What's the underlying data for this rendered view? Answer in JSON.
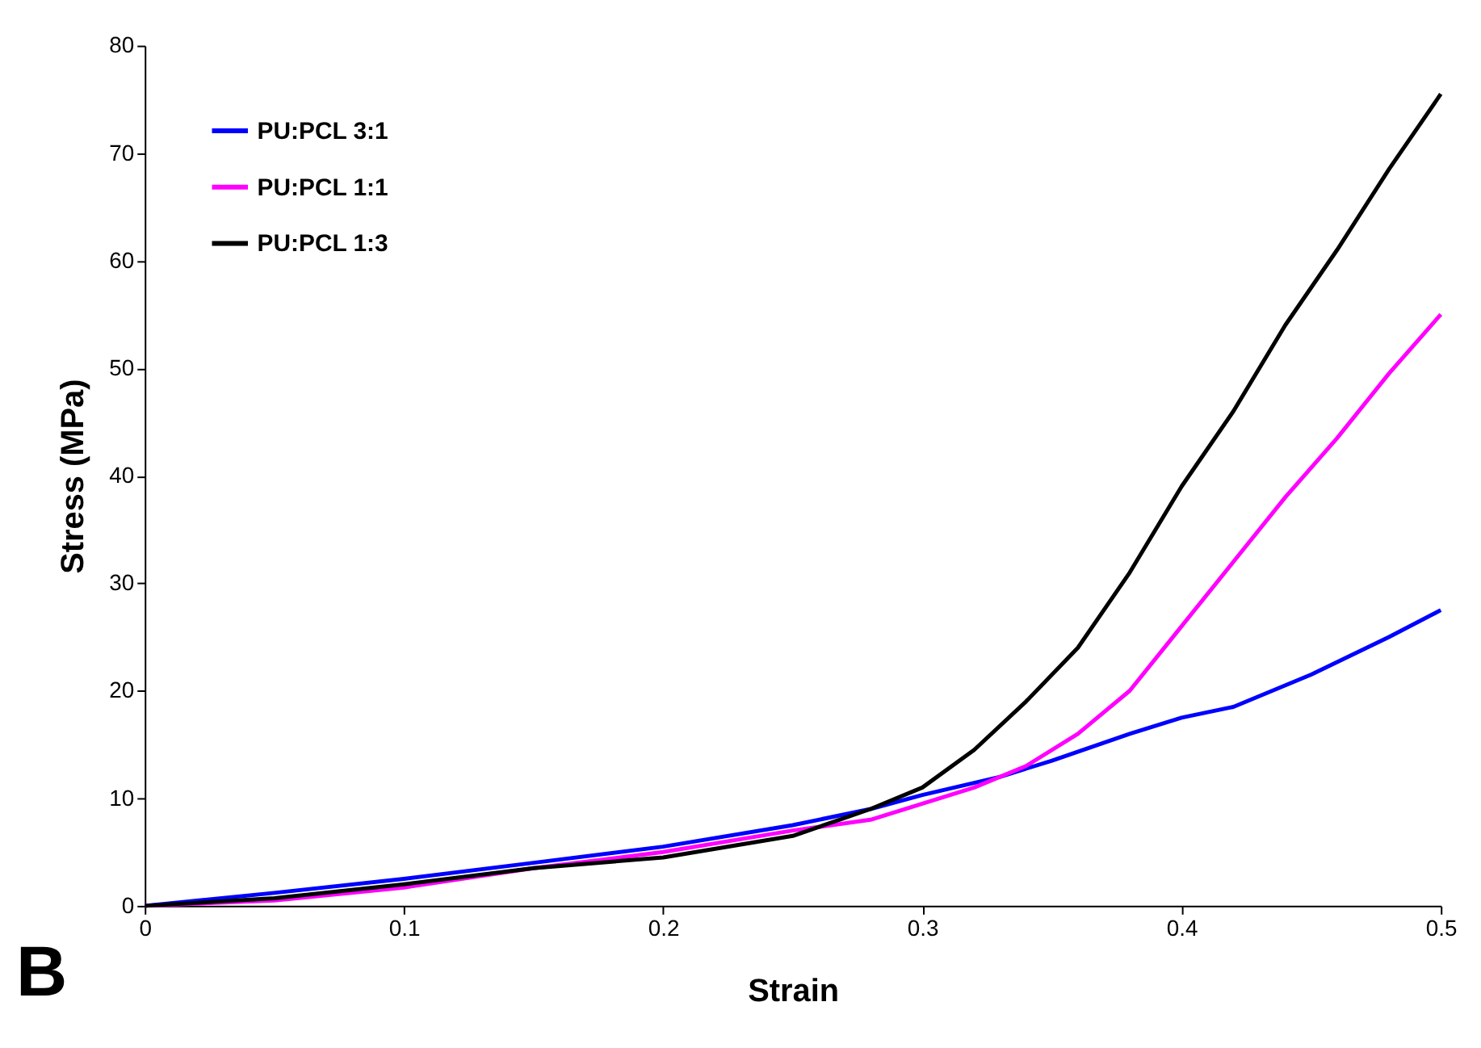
{
  "chart_data": {
    "type": "line",
    "xlabel": "Strain",
    "ylabel": "Stress (MPa)",
    "annotations": [
      "B"
    ],
    "xlim": [
      0,
      0.5
    ],
    "xticks": [
      0,
      0.1,
      0.2,
      0.3,
      0.4,
      0.5
    ],
    "ylim": [
      0,
      80
    ],
    "yticks": [
      0,
      10,
      20,
      30,
      40,
      50,
      60,
      70,
      80
    ],
    "grid": false,
    "legend": "top left",
    "marker": "none",
    "line_style": "solid",
    "series": [
      {
        "name": "PU:PCL 3:1",
        "color": "#0000ff",
        "x": [
          0,
          0.05,
          0.1,
          0.15,
          0.2,
          0.25,
          0.28,
          0.3,
          0.33,
          0.35,
          0.38,
          0.4,
          0.42,
          0.45,
          0.48,
          0.5
        ],
        "values": [
          0,
          1.2,
          2.5,
          4,
          5.5,
          7.5,
          9,
          10.3,
          12,
          13.5,
          16,
          17.5,
          18.5,
          21.5,
          25,
          27.5
        ]
      },
      {
        "name": "PU:PCL 1:1",
        "color": "#ff00ff",
        "x": [
          0,
          0.05,
          0.1,
          0.15,
          0.2,
          0.25,
          0.28,
          0.3,
          0.32,
          0.34,
          0.36,
          0.38,
          0.4,
          0.42,
          0.44,
          0.46,
          0.48,
          0.5
        ],
        "values": [
          0,
          0.5,
          1.7,
          3.5,
          5,
          7,
          8,
          9.5,
          11,
          13,
          16,
          20,
          26,
          32,
          38,
          43.5,
          49.5,
          55
        ]
      },
      {
        "name": "PU:PCL 1:3",
        "color": "#000000",
        "x": [
          0,
          0.05,
          0.1,
          0.15,
          0.2,
          0.25,
          0.28,
          0.3,
          0.32,
          0.34,
          0.36,
          0.38,
          0.4,
          0.42,
          0.44,
          0.46,
          0.48,
          0.5
        ],
        "values": [
          0,
          0.7,
          2,
          3.5,
          4.5,
          6.5,
          9,
          11,
          14.5,
          19,
          24,
          31,
          39,
          46,
          54,
          61,
          68.5,
          75.5
        ]
      }
    ]
  }
}
